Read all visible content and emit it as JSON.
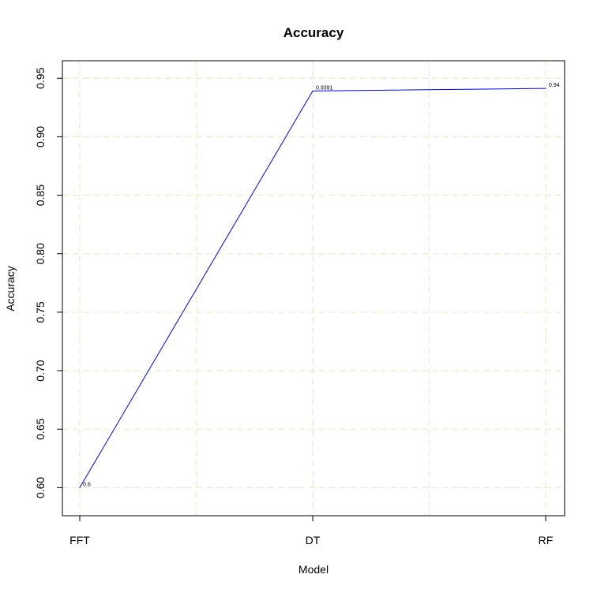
{
  "chart_data": {
    "type": "line",
    "title": "Accuracy",
    "xlabel": "Model",
    "ylabel": "Accuracy",
    "categories": [
      "FFT",
      "DT",
      "RF"
    ],
    "series": [
      {
        "values": [
          0.6,
          0.9391,
          0.9413
        ],
        "color": "#0000ff"
      }
    ],
    "data_labels": [
      "0.6",
      "0.9391",
      "0.94"
    ],
    "yticks": [
      0.6,
      0.65,
      0.7,
      0.75,
      0.8,
      0.85,
      0.9,
      0.95
    ],
    "ytick_labels": [
      "0.60",
      "0.65",
      "0.70",
      "0.75",
      "0.80",
      "0.85",
      "0.90",
      "0.95"
    ],
    "ylim": [
      0.576,
      0.965
    ],
    "grid": true,
    "grid_color": "#e8efcf"
  }
}
